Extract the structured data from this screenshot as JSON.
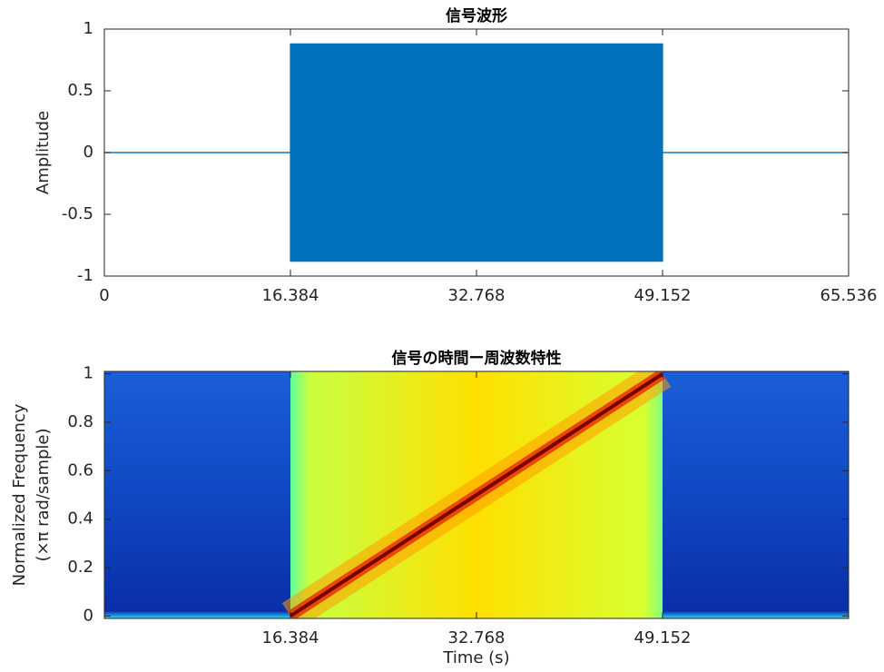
{
  "chart_data": [
    {
      "type": "band",
      "title": "信号波形",
      "ylabel": "Amplitude",
      "x": [
        0,
        16.384,
        16.384,
        49.152,
        49.152,
        65.536
      ],
      "upper": [
        0,
        0,
        0.88,
        0.88,
        0,
        0
      ],
      "lower": [
        0,
        0,
        -0.88,
        -0.88,
        0,
        0
      ],
      "color": "#0072bd",
      "xlim": [
        0,
        65.536
      ],
      "xticks": [
        0,
        16.384,
        32.768,
        49.152,
        65.536
      ],
      "ylim": [
        -1,
        1
      ],
      "yticks": [
        -1,
        -0.5,
        0,
        0.5,
        1
      ]
    },
    {
      "type": "spectrogram",
      "title": "信号の時間ー周波数特性",
      "xlabel": "Time (s)",
      "ylabel": [
        "Normalized Frequency",
        "(×π  rad/sample)"
      ],
      "x": [
        16.384,
        49.152
      ],
      "values": [
        0,
        1
      ],
      "xlim": [
        0,
        65.536
      ],
      "xticks": [
        16.384,
        32.768,
        49.152
      ],
      "ylim": [
        -0.01,
        1.01
      ],
      "yticks": [
        0,
        0.2,
        0.4,
        0.6,
        0.8,
        1
      ]
    }
  ]
}
